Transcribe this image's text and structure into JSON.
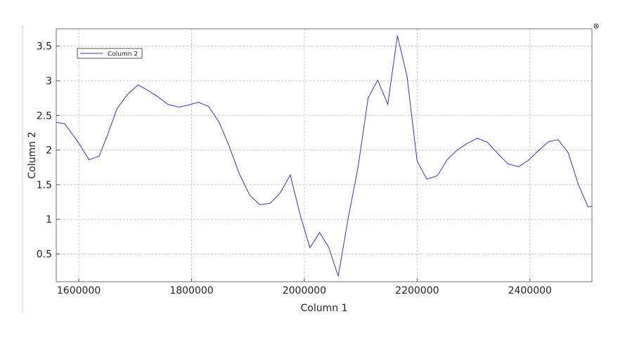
{
  "chart_data": {
    "type": "line",
    "title": "",
    "xlabel": "Column 1",
    "ylabel": "Column 2",
    "xlim": [
      1560000,
      2510000
    ],
    "ylim": [
      0.1,
      3.75
    ],
    "x_ticks": [
      1600000,
      1800000,
      2000000,
      2200000,
      2400000
    ],
    "y_ticks": [
      0.5,
      1,
      1.5,
      2,
      2.5,
      3,
      3.5
    ],
    "x_tick_labels": [
      "1600000",
      "1800000",
      "2000000",
      "2200000",
      "2400000"
    ],
    "y_tick_labels": [
      "0.5",
      "1",
      "1.5",
      "2",
      "2.5",
      "3",
      "3.5"
    ],
    "grid": true,
    "legend": {
      "position": "top-left",
      "entries": [
        "Column 2"
      ]
    },
    "series": [
      {
        "name": "Column 2",
        "color": "#3333cc",
        "x": [
          1560000,
          1575000,
          1600000,
          1618000,
          1636000,
          1651000,
          1668000,
          1686000,
          1705000,
          1723000,
          1740000,
          1758000,
          1777000,
          1795000,
          1812000,
          1830000,
          1849000,
          1867000,
          1885000,
          1903000,
          1921000,
          1939000,
          1957000,
          1975000,
          1993000,
          2010000,
          2027000,
          2043000,
          2060000,
          2078000,
          2095000,
          2113000,
          2130000,
          2148000,
          2165000,
          2182000,
          2200000,
          2217000,
          2236000,
          2253000,
          2271000,
          2290000,
          2307000,
          2325000,
          2343000,
          2361000,
          2380000,
          2397000,
          2416000,
          2433000,
          2450000,
          2468000,
          2486000,
          2503000,
          2510000
        ],
        "values": [
          2.4,
          2.38,
          2.1,
          1.86,
          1.91,
          2.22,
          2.6,
          2.8,
          2.94,
          2.86,
          2.77,
          2.66,
          2.62,
          2.65,
          2.69,
          2.63,
          2.4,
          2.05,
          1.65,
          1.35,
          1.21,
          1.23,
          1.38,
          1.64,
          1.05,
          0.59,
          0.81,
          0.6,
          0.18,
          1.03,
          1.74,
          2.75,
          3.01,
          2.66,
          3.65,
          3.07,
          1.84,
          1.58,
          1.63,
          1.86,
          2.0,
          2.1,
          2.17,
          2.11,
          1.95,
          1.8,
          1.76,
          1.85,
          2.0,
          2.12,
          2.15,
          1.96,
          1.5,
          1.18,
          1.19
        ]
      }
    ]
  }
}
